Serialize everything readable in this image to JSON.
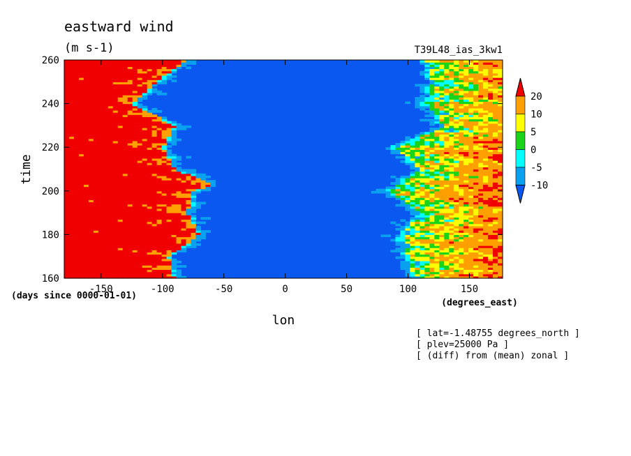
{
  "chart_data": {
    "type": "heatmap",
    "title": "eastward wind",
    "units": "(m s-1)",
    "run_label": "T39L48_ias_3kw1",
    "xlabel": "lon",
    "x_units": "(degrees_east)",
    "ylabel": "time",
    "y_units": "(days since 0000-01-01)",
    "xlim": [
      -180,
      177
    ],
    "ylim": [
      160,
      260
    ],
    "x_ticks": [
      -150,
      -100,
      -50,
      0,
      50,
      100,
      150
    ],
    "y_ticks": [
      160,
      180,
      200,
      220,
      240,
      260
    ],
    "x_tick_labels": [
      "-150",
      "-100",
      "-50",
      "0",
      "50",
      "100",
      "150"
    ],
    "y_tick_labels": [
      "160",
      "180",
      "200",
      "220",
      "240",
      "260"
    ],
    "colorbar": {
      "levels": [
        -10,
        -5,
        0,
        5,
        10,
        20
      ],
      "labels": [
        "-10",
        "-5",
        "0",
        "5",
        "10",
        "20"
      ],
      "colors": [
        "#0a58f0",
        "#0aa0f0",
        "#00ffff",
        "#19d419",
        "#ffff00",
        "#ffa000",
        "#f00000"
      ]
    },
    "notes": [
      "[ lat=-1.48755 degrees_north ]",
      "[ plev=25000 Pa ]",
      "[ (diff) from (mean) zonal ]"
    ],
    "wind_structure": {
      "west_boundary_lon": [
        [
          160,
          -90
        ],
        [
          170,
          -95
        ],
        [
          180,
          -70
        ],
        [
          190,
          -80
        ],
        [
          200,
          -75
        ],
        [
          203,
          -58
        ],
        [
          210,
          -90
        ],
        [
          220,
          -100
        ],
        [
          230,
          -90
        ],
        [
          240,
          -125
        ],
        [
          250,
          -105
        ],
        [
          260,
          -80
        ]
      ],
      "east_boundary_lon": [
        [
          160,
          105
        ],
        [
          170,
          100
        ],
        [
          180,
          95
        ],
        [
          190,
          110
        ],
        [
          200,
          85
        ],
        [
          210,
          110
        ],
        [
          220,
          90
        ],
        [
          230,
          130
        ],
        [
          240,
          115
        ],
        [
          250,
          120
        ],
        [
          260,
          115
        ]
      ]
    }
  }
}
